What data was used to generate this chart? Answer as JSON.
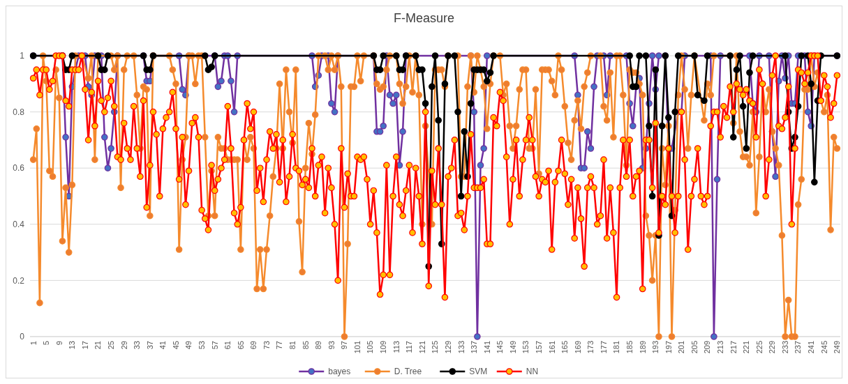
{
  "chart_data": {
    "type": "line",
    "title": "F-Measure",
    "xlim": [
      0,
      250
    ],
    "xticks": [
      1,
      5,
      9,
      13,
      17,
      21,
      25,
      29,
      33,
      37,
      41,
      45,
      49,
      53,
      57,
      61,
      65,
      69,
      73,
      77,
      81,
      85,
      89,
      93,
      97,
      101,
      105,
      109,
      113,
      117,
      121,
      125,
      129,
      133,
      137,
      141,
      145,
      149,
      153,
      157,
      161,
      165,
      169,
      173,
      177,
      181,
      185,
      189,
      193,
      197,
      201,
      205,
      209,
      213,
      217,
      221,
      225,
      229,
      233,
      237,
      241,
      245,
      249
    ],
    "ylim": [
      0,
      1
    ],
    "yticks": [
      0,
      0.2,
      0.4,
      0.6,
      0.8,
      1
    ],
    "grid": "y",
    "legend": "bottom",
    "marker": "circle",
    "line_style": "solid",
    "series": [
      {
        "name": "bayes",
        "color": "#7030a0",
        "x": [
          1,
          10,
          11,
          12,
          13,
          14,
          15,
          17,
          18,
          19,
          20,
          22,
          23,
          24,
          25,
          26,
          27,
          35,
          36,
          37,
          38,
          46,
          47,
          48,
          49,
          57,
          58,
          59,
          60,
          61,
          62,
          63,
          64,
          87,
          88,
          89,
          90,
          92,
          93,
          94,
          95,
          106,
          107,
          108,
          109,
          110,
          111,
          112,
          113,
          114,
          115,
          116,
          136,
          137,
          138,
          139,
          140,
          141,
          168,
          169,
          170,
          171,
          172,
          173,
          174,
          175,
          177,
          178,
          179,
          184,
          185,
          186,
          187,
          188,
          189,
          190,
          191,
          192,
          193,
          194,
          196,
          197,
          198,
          200,
          201,
          202,
          210,
          211,
          212,
          213,
          222,
          223,
          224,
          225,
          228,
          229,
          230,
          231,
          232,
          233,
          234,
          235,
          236,
          237,
          239,
          240,
          241,
          242,
          249
        ],
        "values": [
          1,
          1,
          0.71,
          0.5,
          0.89,
          0.95,
          1,
          1,
          0.89,
          0.86,
          1,
          1,
          0.71,
          0.6,
          0.67,
          0.8,
          1,
          1,
          0.91,
          0.91,
          1,
          1,
          0.88,
          0.86,
          1,
          1,
          0.89,
          0.91,
          1,
          1,
          0.91,
          0.8,
          1,
          1,
          0.89,
          0.93,
          1,
          1,
          0.83,
          0.8,
          1,
          1,
          0.73,
          0.73,
          0.75,
          1,
          0.86,
          0.83,
          0.86,
          0.61,
          0.73,
          1,
          1,
          0.8,
          0,
          0.61,
          0.67,
          1,
          1,
          0.86,
          0.6,
          0.6,
          0.73,
          0.67,
          0.89,
          1,
          1,
          0.86,
          1,
          1,
          0.83,
          0.75,
          0.89,
          0.92,
          0.6,
          0.67,
          0.83,
          1,
          0.88,
          1,
          1,
          0.67,
          0.67,
          0.8,
          0.8,
          1,
          1,
          0,
          0.56,
          1,
          1,
          0.83,
          0.8,
          1,
          1,
          0.73,
          0.57,
          0.91,
          1,
          0.92,
          1,
          0.83,
          0.83,
          1,
          1,
          0.8,
          0.75,
          1,
          1
        ]
      },
      {
        "name": "D. Tree",
        "color": "#f58a2c",
        "x": [
          1,
          2,
          3,
          4,
          5,
          6,
          7,
          8,
          9,
          10,
          11,
          12,
          13,
          14,
          16,
          18,
          19,
          20,
          21,
          25,
          26,
          27,
          28,
          29,
          30,
          32,
          33,
          34,
          35,
          36,
          37,
          38,
          43,
          44,
          45,
          46,
          47,
          48,
          49,
          50,
          51,
          52,
          53,
          54,
          55,
          56,
          57,
          58,
          59,
          60,
          61,
          62,
          63,
          64,
          65,
          66,
          67,
          68,
          69,
          70,
          71,
          72,
          73,
          74,
          75,
          76,
          77,
          78,
          79,
          80,
          81,
          82,
          83,
          84,
          85,
          86,
          87,
          88,
          89,
          91,
          92,
          93,
          94,
          95,
          96,
          97,
          98,
          99,
          100,
          101,
          102,
          103,
          106,
          107,
          108,
          109,
          110,
          111,
          113,
          114,
          115,
          116,
          117,
          118,
          119,
          120,
          121,
          122,
          124,
          125,
          126,
          127,
          128,
          129,
          132,
          133,
          134,
          135,
          136,
          137,
          138,
          139,
          140,
          141,
          142,
          143,
          145,
          146,
          147,
          148,
          149,
          150,
          151,
          152,
          153,
          154,
          155,
          156,
          157,
          158,
          159,
          160,
          161,
          162,
          163,
          164,
          165,
          166,
          167,
          168,
          169,
          170,
          171,
          172,
          173,
          176,
          177,
          178,
          179,
          180,
          181,
          182,
          183,
          184,
          185,
          186,
          187,
          188,
          189,
          190,
          191,
          192,
          193,
          194,
          195,
          196,
          197,
          198,
          199,
          200,
          201,
          202,
          203,
          204,
          205,
          208,
          209,
          210,
          211,
          216,
          217,
          218,
          219,
          220,
          221,
          222,
          223,
          224,
          225,
          226,
          227,
          228,
          229,
          230,
          231,
          232,
          233,
          234,
          235,
          236,
          237,
          238,
          239,
          240,
          241,
          242,
          243,
          244,
          245,
          246,
          247,
          248,
          249
        ],
        "values": [
          0.63,
          0.74,
          0.12,
          1,
          0.91,
          0.59,
          0.57,
          0.95,
          0.85,
          0.34,
          0.53,
          0.3,
          0.54,
          1,
          1,
          0.92,
          1,
          0.63,
          1,
          1,
          0.95,
          1,
          0.53,
          0.95,
          1,
          1,
          0.86,
          0.67,
          0.89,
          0.88,
          0.43,
          1,
          1,
          0.95,
          0.9,
          0.31,
          0.63,
          0.71,
          1,
          1,
          0.9,
          1,
          1,
          0.71,
          0.43,
          0.59,
          0.43,
          0.71,
          0.67,
          0.67,
          0.63,
          0.63,
          0.63,
          0.63,
          0.31,
          0.7,
          0.63,
          0.71,
          0.67,
          0.17,
          0.31,
          0.17,
          0.31,
          0.43,
          0.57,
          0.67,
          0.9,
          0.67,
          0.95,
          0.8,
          0.69,
          0.95,
          0.41,
          0.23,
          0.6,
          0.76,
          0.65,
          0.79,
          1,
          1,
          0.95,
          1,
          0.95,
          1,
          0.89,
          0,
          0.33,
          0.89,
          0.89,
          1,
          0.91,
          1,
          1,
          0.9,
          0.88,
          0.89,
          0.95,
          1,
          1,
          0.9,
          0.83,
          0.89,
          1,
          0.87,
          1,
          0.86,
          0.4,
          0.75,
          0.4,
          0.95,
          0.95,
          0.95,
          0.89,
          1,
          1,
          0.57,
          0.57,
          0.89,
          1,
          0.87,
          1,
          0.95,
          0.89,
          0.74,
          0.9,
          1,
          1,
          0.86,
          0.9,
          0.75,
          0.67,
          0.75,
          0.88,
          0.95,
          0.95,
          0.67,
          0.67,
          0.88,
          0.58,
          0.95,
          0.95,
          0.95,
          0.91,
          0.86,
          1,
          0.95,
          0.82,
          0.69,
          0.63,
          0.77,
          0.84,
          0.74,
          0.89,
          0.94,
          1,
          1,
          0.82,
          0.77,
          0.94,
          0.71,
          1,
          1,
          0.86,
          0.61,
          0.95,
          0.94,
          0.94,
          0.9,
          0.86,
          0.43,
          0.36,
          0.2,
          0.36,
          0,
          0.67,
          0.54,
          0.75,
          0,
          0.45,
          0.86,
          1,
          0.88,
          0.67,
          0.86,
          1,
          0.77,
          0.9,
          0.86,
          1,
          1,
          0.76,
          1,
          0.73,
          0.64,
          0.64,
          0.61,
          0.8,
          0.44,
          0.64,
          0.9,
          0.8,
          0.88,
          0.73,
          0.67,
          0.61,
          0.36,
          0,
          0.13,
          0,
          0,
          0.47,
          0.56,
          0.88,
          0.88,
          1,
          0.89,
          0.94,
          0.84,
          0.8,
          0.86,
          0.38,
          0.71,
          0.67
        ]
      },
      {
        "name": "SVM",
        "color": "#000000",
        "x": [
          1,
          10,
          11,
          12,
          13,
          21,
          22,
          23,
          24,
          35,
          36,
          37,
          38,
          54,
          55,
          56,
          57,
          106,
          107,
          108,
          109,
          113,
          114,
          115,
          116,
          119,
          120,
          121,
          122,
          123,
          124,
          125,
          126,
          127,
          128,
          129,
          131,
          132,
          133,
          134,
          135,
          136,
          137,
          138,
          139,
          140,
          141,
          142,
          143,
          185,
          186,
          187,
          188,
          190,
          191,
          192,
          193,
          194,
          195,
          196,
          197,
          198,
          199,
          200,
          205,
          206,
          208,
          209,
          216,
          217,
          218,
          219,
          220,
          221,
          222,
          223,
          233,
          234,
          235,
          236,
          237,
          238,
          240,
          241,
          242,
          243,
          244,
          249
        ],
        "values": [
          1,
          1,
          0.95,
          0.95,
          1,
          1,
          0.95,
          0.95,
          1,
          1,
          0.95,
          0.95,
          1,
          1,
          0.95,
          0.96,
          1,
          1,
          0.95,
          0.95,
          1,
          1,
          0.95,
          0.95,
          1,
          1,
          0.95,
          0.95,
          0.83,
          0.25,
          0.89,
          1,
          0.77,
          0.33,
          0.9,
          1,
          1,
          0.8,
          0.5,
          0.73,
          0.57,
          0.83,
          0.95,
          0.95,
          0.95,
          0.95,
          0.91,
          0.94,
          1,
          1,
          0.89,
          0.89,
          1,
          1,
          0.75,
          0.5,
          0.95,
          0.36,
          0.75,
          1,
          0.78,
          0.43,
          0.8,
          1,
          1,
          0.86,
          0.84,
          1,
          1,
          0.71,
          0.95,
          1,
          0.82,
          0.67,
          0.94,
          1,
          1,
          0.8,
          0.67,
          0.71,
          0.82,
          1,
          1,
          0.9,
          0.55,
          0.84,
          1,
          1
        ]
      },
      {
        "name": "NN",
        "color": "#ff0000",
        "x": [
          1,
          2,
          3,
          4,
          5,
          6,
          7,
          8,
          9,
          10,
          11,
          12,
          13,
          14,
          15,
          16,
          17,
          18,
          19,
          20,
          21,
          22,
          23,
          24,
          25,
          26,
          27,
          28,
          29,
          30,
          31,
          32,
          33,
          34,
          35,
          36,
          37,
          38,
          39,
          40,
          41,
          42,
          43,
          44,
          45,
          46,
          47,
          48,
          49,
          50,
          51,
          52,
          53,
          54,
          55,
          56,
          57,
          58,
          59,
          60,
          61,
          62,
          63,
          64,
          65,
          66,
          67,
          68,
          69,
          70,
          71,
          72,
          73,
          74,
          75,
          76,
          77,
          78,
          79,
          80,
          81,
          82,
          83,
          84,
          85,
          86,
          87,
          88,
          89,
          90,
          91,
          92,
          93,
          94,
          95,
          96,
          97,
          98,
          99,
          100,
          101,
          102,
          103,
          104,
          105,
          106,
          107,
          108,
          109,
          110,
          111,
          112,
          113,
          114,
          115,
          116,
          117,
          118,
          119,
          120,
          121,
          122,
          123,
          124,
          125,
          126,
          127,
          128,
          129,
          130,
          131,
          132,
          133,
          134,
          135,
          136,
          137,
          138,
          139,
          140,
          141,
          142,
          143,
          144,
          145,
          146,
          147,
          148,
          149,
          150,
          151,
          152,
          153,
          154,
          155,
          156,
          157,
          158,
          159,
          160,
          161,
          162,
          163,
          164,
          165,
          166,
          167,
          168,
          169,
          170,
          171,
          172,
          173,
          174,
          175,
          176,
          177,
          178,
          179,
          180,
          181,
          182,
          183,
          184,
          185,
          186,
          187,
          188,
          189,
          190,
          191,
          192,
          193,
          194,
          195,
          196,
          197,
          198,
          199,
          200,
          201,
          202,
          203,
          204,
          205,
          206,
          207,
          208,
          209,
          210,
          211,
          212,
          213,
          214,
          215,
          216,
          217,
          218,
          219,
          220,
          221,
          222,
          223,
          224,
          225,
          226,
          227,
          228,
          229,
          230,
          231,
          232,
          233,
          234,
          235,
          236,
          237,
          238,
          239,
          240,
          241,
          242,
          243,
          244,
          245,
          246,
          247,
          248,
          249
        ],
        "values": [
          0.92,
          0.95,
          0.86,
          0.95,
          0.95,
          0.88,
          0.91,
          1,
          1,
          1,
          0.84,
          0.82,
          0.95,
          0.95,
          0.95,
          1,
          0.88,
          0.7,
          0.87,
          0.75,
          0.91,
          0.84,
          0.8,
          0.85,
          0.91,
          0.82,
          0.64,
          0.63,
          0.76,
          0.67,
          0.63,
          0.82,
          0.67,
          0.57,
          0.84,
          0.46,
          0.61,
          0.8,
          0.72,
          0.5,
          0.74,
          0.78,
          0.8,
          0.87,
          0.74,
          0.56,
          0.71,
          0.47,
          0.59,
          0.76,
          0.78,
          0.71,
          0.45,
          0.42,
          0.38,
          0.61,
          0.52,
          0.56,
          0.6,
          0.63,
          0.82,
          0.67,
          0.44,
          0.4,
          0.46,
          0.7,
          0.83,
          0.74,
          0.8,
          0.52,
          0.6,
          0.48,
          0.63,
          0.73,
          0.67,
          0.72,
          0.55,
          0.7,
          0.48,
          0.57,
          0.72,
          0.6,
          0.59,
          0.54,
          0.56,
          0.53,
          0.67,
          0.5,
          0.61,
          0.64,
          0.44,
          0.6,
          0.53,
          0.4,
          0.2,
          0.67,
          0.46,
          0.58,
          0.5,
          0.5,
          0.64,
          0.63,
          0.64,
          0.56,
          0.4,
          0.52,
          0.37,
          0.15,
          0.22,
          0.61,
          0.22,
          0.5,
          0.64,
          0.47,
          0.43,
          0.52,
          0.61,
          0.37,
          0.6,
          0.5,
          0.33,
          0.8,
          0.18,
          0.59,
          0.47,
          0.67,
          0.47,
          0.14,
          0.57,
          0.6,
          0.7,
          0.43,
          0.44,
          0.38,
          0.5,
          0.72,
          0.53,
          0.53,
          0.53,
          0.56,
          0.33,
          0.33,
          0.78,
          0.75,
          0.87,
          0.84,
          0.64,
          0.4,
          0.56,
          0.7,
          0.5,
          0.63,
          0.7,
          0.78,
          0.7,
          0.57,
          0.5,
          0.56,
          0.55,
          0.59,
          0.31,
          0.55,
          0.59,
          0.7,
          0.58,
          0.47,
          0.56,
          0.35,
          0.53,
          0.42,
          0.25,
          0.53,
          0.57,
          0.53,
          0.4,
          0.43,
          0.63,
          0.35,
          0.53,
          0.37,
          0.14,
          0.53,
          0.7,
          0.57,
          0.7,
          0.5,
          0.57,
          0.59,
          0.17,
          0.7,
          0.7,
          0.53,
          0.76,
          0.37,
          0.5,
          0.47,
          0.67,
          0.5,
          0.37,
          0.5,
          0.8,
          0.63,
          0.31,
          0.5,
          0.56,
          0.67,
          0.5,
          0.47,
          0.5,
          0.75,
          0.8,
          0.8,
          0.71,
          0.82,
          0.78,
          0.89,
          0.8,
          0.9,
          0.88,
          0.86,
          0.88,
          0.84,
          0.83,
          0.71,
          0.95,
          0.9,
          0.5,
          0.63,
          0.93,
          1,
          0.75,
          0.74,
          0.78,
          0.89,
          0.4,
          0.67,
          0.95,
          0.94,
          0.9,
          0.94,
          1,
          1,
          1,
          0.84,
          0.93,
          0.89,
          0.78,
          0.83,
          0.93
        ]
      }
    ]
  }
}
